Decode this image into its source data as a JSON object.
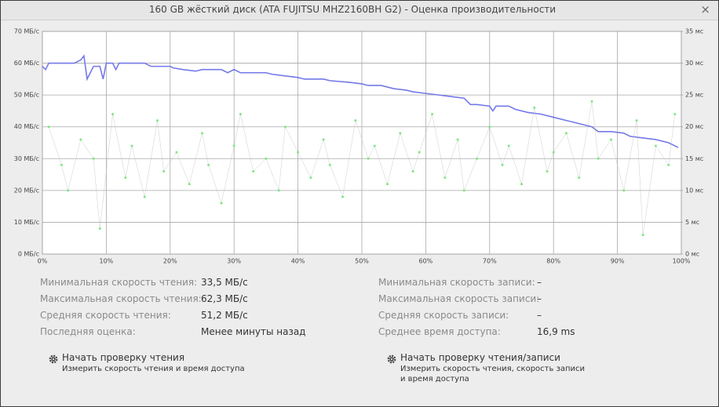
{
  "window": {
    "title": "160 GB жёсткий диск (ATA FUJITSU MHZ2160BH G2) - Оценка производительности",
    "close": "×"
  },
  "chart_data": {
    "type": "line",
    "grid": true,
    "xlim": [
      0,
      100
    ],
    "xticks": [
      {
        "value": 0,
        "label": "0%"
      },
      {
        "value": 10,
        "label": "10%"
      },
      {
        "value": 20,
        "label": "20%"
      },
      {
        "value": 30,
        "label": "30%"
      },
      {
        "value": 40,
        "label": "40%"
      },
      {
        "value": 50,
        "label": "50%"
      },
      {
        "value": 60,
        "label": "60%"
      },
      {
        "value": 70,
        "label": "70%"
      },
      {
        "value": 80,
        "label": "80%"
      },
      {
        "value": 90,
        "label": "90%"
      },
      {
        "value": 100,
        "label": "100%"
      }
    ],
    "ylim": [
      0,
      70
    ],
    "yticks": [
      {
        "value": 0,
        "label": "0 МБ/с"
      },
      {
        "value": 10,
        "label": "10 МБ/с"
      },
      {
        "value": 20,
        "label": "20 МБ/с"
      },
      {
        "value": 30,
        "label": "30 МБ/с"
      },
      {
        "value": 40,
        "label": "40 МБ/с"
      },
      {
        "value": 50,
        "label": "50 МБ/с"
      },
      {
        "value": 60,
        "label": "60 МБ/с"
      },
      {
        "value": 70,
        "label": "70 МБ/с"
      }
    ],
    "y2lim": [
      0,
      35
    ],
    "y2ticks": [
      {
        "value": 0,
        "label": "0 мс"
      },
      {
        "value": 5,
        "label": "5 мс"
      },
      {
        "value": 10,
        "label": "10 мс"
      },
      {
        "value": 15,
        "label": "15 мс"
      },
      {
        "value": 20,
        "label": "20 мс"
      },
      {
        "value": 25,
        "label": "25 мс"
      },
      {
        "value": 30,
        "label": "30 мс"
      },
      {
        "value": 35,
        "label": "35 мс"
      }
    ],
    "series": [
      {
        "type": "line",
        "color": "#7479e8",
        "x": [
          0,
          0.5,
          1,
          5,
          6,
          6.5,
          7,
          8,
          9,
          9.5,
          10,
          11,
          11.5,
          12,
          16,
          17,
          20,
          20.5,
          22,
          24,
          25,
          28,
          29,
          30,
          31,
          32,
          35,
          36,
          38,
          40,
          41,
          44,
          45,
          48,
          50,
          51,
          53,
          55,
          57,
          58,
          60,
          62,
          64,
          66,
          67,
          68,
          70,
          70.5,
          71,
          73,
          74,
          76,
          78,
          80,
          82,
          84,
          86,
          87,
          89,
          91,
          92,
          94,
          96,
          98,
          99.5
        ],
        "values": [
          59,
          58,
          60,
          60,
          61,
          62.3,
          55,
          59,
          59,
          55,
          60,
          60,
          58,
          60,
          60,
          59,
          59,
          58.5,
          58,
          57.5,
          58,
          58,
          57,
          58,
          57,
          57,
          57,
          56.5,
          56,
          55.5,
          55,
          55,
          54.5,
          54,
          53.5,
          53,
          53,
          52,
          51.5,
          51,
          50.5,
          50,
          49.5,
          49,
          47,
          47,
          46.5,
          45,
          46.5,
          46.5,
          45.5,
          44.5,
          44,
          43,
          42,
          41,
          40,
          38.5,
          38.5,
          38,
          37,
          36.5,
          36,
          35,
          33.5
        ]
      },
      {
        "type": "scatter",
        "axis": "y2",
        "color": "#7de87d",
        "x": [
          1,
          3,
          4,
          6,
          8,
          9,
          11,
          13,
          14,
          16,
          18,
          19,
          21,
          23,
          25,
          26,
          28,
          30,
          31,
          33,
          35,
          37,
          38,
          40,
          42,
          44,
          45,
          47,
          49,
          51,
          52,
          54,
          56,
          58,
          59,
          61,
          63,
          65,
          66,
          68,
          70,
          72,
          73,
          75,
          77,
          79,
          80,
          82,
          84,
          86,
          87,
          89,
          91,
          93,
          94,
          96,
          98,
          99
        ],
        "values": [
          20,
          14,
          10,
          18,
          15,
          4,
          22,
          12,
          17,
          9,
          21,
          13,
          16,
          11,
          19,
          14,
          8,
          17,
          22,
          13,
          15,
          10,
          20,
          16,
          12,
          18,
          14,
          9,
          21,
          15,
          17,
          11,
          19,
          13,
          16,
          22,
          12,
          18,
          10,
          15,
          20,
          14,
          17,
          11,
          23,
          13,
          16,
          19,
          12,
          24,
          15,
          18,
          10,
          21,
          3,
          17,
          14,
          22
        ]
      }
    ]
  },
  "stats": {
    "left": [
      {
        "label": "Минимальная скорость чтения:",
        "value": "33,5 МБ/с"
      },
      {
        "label": "Максимальная скорость чтения:",
        "value": "62,3 МБ/с"
      },
      {
        "label": "Средняя скорость чтения:",
        "value": "51,2 МБ/с"
      },
      {
        "label": "Последняя оценка:",
        "value": "Менее минуты назад"
      }
    ],
    "right": [
      {
        "label": "Минимальная скорость записи:",
        "value": "–"
      },
      {
        "label": "Максимальная скорость записи:",
        "value": "–"
      },
      {
        "label": "Средняя скорость записи:",
        "value": "–"
      },
      {
        "label": "Среднее время доступа:",
        "value": "16,9 ms"
      }
    ]
  },
  "actions": [
    {
      "title": "Начать проверку чтения",
      "description": "Измерить скорость чтения и время доступа"
    },
    {
      "title": "Начать проверку чтения/записи",
      "description": "Измерить скорость чтения, скорость записи и время доступа"
    }
  ]
}
